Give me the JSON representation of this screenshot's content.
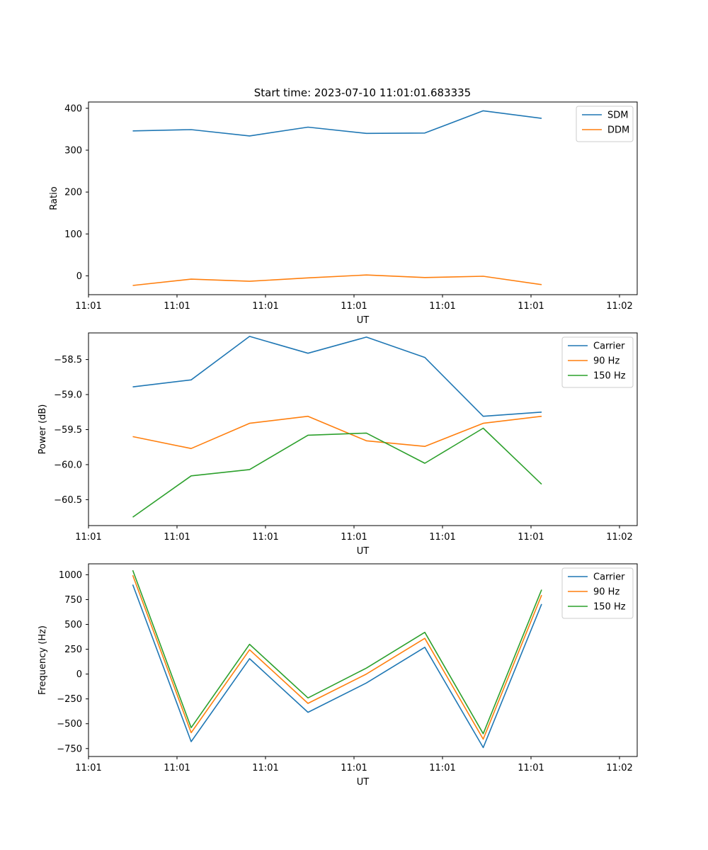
{
  "figure_title": "Start time: 2023-07-10 11:01:01.683335",
  "colors": {
    "blue": "#1f77b4",
    "orange": "#ff7f0e",
    "green": "#2ca02c"
  },
  "chart_data": [
    {
      "type": "line",
      "title": "Start time: 2023-07-10 11:01:01.683335",
      "xlabel": "UT",
      "ylabel": "Ratio",
      "xticks": [
        "11:01",
        "11:01",
        "11:01",
        "11:01",
        "11:01",
        "11:01",
        "11:02"
      ],
      "xlim": [
        0,
        6.2
      ],
      "x": [
        0.5,
        1.16,
        1.82,
        2.48,
        3.14,
        3.8,
        4.46,
        5.12
      ],
      "yticks": [
        0,
        100,
        200,
        300,
        400
      ],
      "ylim": [
        -45,
        415
      ],
      "legend": "top-right",
      "series": [
        {
          "name": "SDM",
          "color": "#1f77b4",
          "values": [
            346,
            349,
            334,
            355,
            340,
            341,
            394,
            376
          ]
        },
        {
          "name": "DDM",
          "color": "#ff7f0e",
          "values": [
            -23,
            -8,
            -13,
            -5,
            2,
            -4,
            -1,
            -21
          ]
        }
      ]
    },
    {
      "type": "line",
      "xlabel": "UT",
      "ylabel": "Power (dB)",
      "xticks": [
        "11:01",
        "11:01",
        "11:01",
        "11:01",
        "11:01",
        "11:01",
        "11:02"
      ],
      "xlim": [
        0,
        6.2
      ],
      "x": [
        0.5,
        1.16,
        1.82,
        2.48,
        3.14,
        3.8,
        4.46,
        5.12
      ],
      "yticks": [
        -58.5,
        -59.0,
        -59.5,
        -60.0,
        -60.5
      ],
      "ytick_labels": [
        "−58.5",
        "−59.0",
        "−59.5",
        "−60.0",
        "−60.5"
      ],
      "ylim": [
        -60.87,
        -58.12
      ],
      "legend": "top-right",
      "series": [
        {
          "name": "Carrier",
          "color": "#1f77b4",
          "values": [
            -58.89,
            -58.79,
            -58.17,
            -58.41,
            -58.18,
            -58.47,
            -59.31,
            -59.25
          ]
        },
        {
          "name": "90 Hz",
          "color": "#ff7f0e",
          "values": [
            -59.6,
            -59.77,
            -59.41,
            -59.31,
            -59.66,
            -59.74,
            -59.41,
            -59.31
          ]
        },
        {
          "name": "150 Hz",
          "color": "#2ca02c",
          "values": [
            -60.75,
            -60.16,
            -60.07,
            -59.58,
            -59.55,
            -59.98,
            -59.48,
            -60.28
          ]
        }
      ]
    },
    {
      "type": "line",
      "xlabel": "UT",
      "ylabel": "Frequency (Hz)",
      "xticks": [
        "11:01",
        "11:01",
        "11:01",
        "11:01",
        "11:01",
        "11:01",
        "11:02"
      ],
      "xlim": [
        0,
        6.2
      ],
      "x": [
        0.5,
        1.16,
        1.82,
        2.48,
        3.14,
        3.8,
        4.46,
        5.12
      ],
      "yticks": [
        1000,
        750,
        500,
        250,
        0,
        -250,
        -500,
        -750
      ],
      "ytick_labels": [
        "1000",
        "750",
        "500",
        "250",
        "0",
        "−250",
        "−500",
        "−750"
      ],
      "ylim": [
        -830,
        1110
      ],
      "legend": "top-right",
      "series": [
        {
          "name": "Carrier",
          "color": "#1f77b4",
          "values": [
            900,
            -680,
            155,
            -385,
            -90,
            270,
            -740,
            705
          ]
        },
        {
          "name": "90 Hz",
          "color": "#ff7f0e",
          "values": [
            995,
            -590,
            245,
            -295,
            0,
            360,
            -655,
            795
          ]
        },
        {
          "name": "150 Hz",
          "color": "#2ca02c",
          "values": [
            1045,
            -540,
            300,
            -240,
            60,
            420,
            -600,
            850
          ]
        }
      ]
    }
  ]
}
